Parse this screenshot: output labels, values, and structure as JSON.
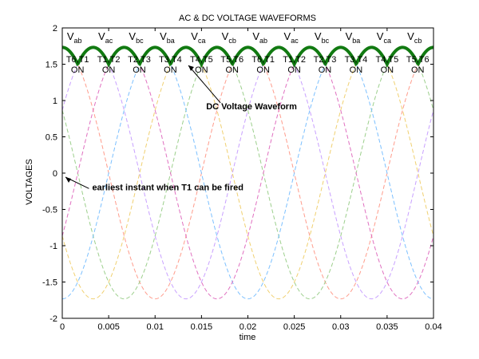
{
  "chart_data": {
    "type": "line",
    "title": "AC & DC VOLTAGE WAVEFORMS",
    "xlabel": "time",
    "ylabel": "VOLTAGES",
    "xlim": [
      0,
      0.04
    ],
    "ylim": [
      -2,
      2
    ],
    "xticks": [
      "0",
      "0.005",
      "0.01",
      "0.015",
      "0.02",
      "0.025",
      "0.03",
      "0.035",
      "0.04"
    ],
    "yticks": [
      "-2",
      "-1.5",
      "-1",
      "-0.5",
      "0",
      "0.5",
      "1",
      "1.5",
      "2"
    ],
    "grid": false,
    "frequency_hz": 50,
    "amplitude": 1.732,
    "series": [
      {
        "phase_deg": 30,
        "color": "#c8a0ff"
      },
      {
        "phase_deg": 90,
        "color": "#ff9c8c"
      },
      {
        "phase_deg": 150,
        "color": "#9ccf8c"
      },
      {
        "phase_deg": 210,
        "color": "#f0d070"
      },
      {
        "phase_deg": 270,
        "color": "#7cc0ff"
      },
      {
        "phase_deg": 330,
        "color": "#e070c0"
      }
    ],
    "dc_waveform": {
      "color": "#117a11"
    },
    "voltage_labels": [
      {
        "base": "V",
        "sub": "ab",
        "t": 0.00165
      },
      {
        "base": "V",
        "sub": "ac",
        "t": 0.005
      },
      {
        "base": "V",
        "sub": "bc",
        "t": 0.0083
      },
      {
        "base": "V",
        "sub": "ba",
        "t": 0.01165
      },
      {
        "base": "V",
        "sub": "ca",
        "t": 0.015
      },
      {
        "base": "V",
        "sub": "cb",
        "t": 0.0183
      },
      {
        "base": "V",
        "sub": "ab",
        "t": 0.02165
      },
      {
        "base": "V",
        "sub": "ac",
        "t": 0.025
      },
      {
        "base": "V",
        "sub": "bc",
        "t": 0.0283
      },
      {
        "base": "V",
        "sub": "ba",
        "t": 0.03165
      },
      {
        "base": "V",
        "sub": "ca",
        "t": 0.035
      },
      {
        "base": "V",
        "sub": "cb",
        "t": 0.0383
      }
    ],
    "thyristor_labels": [
      {
        "pair": "T6,T1",
        "state": "ON",
        "t": 0.00165
      },
      {
        "pair": "T1,T2",
        "state": "ON",
        "t": 0.005
      },
      {
        "pair": "T2,T3",
        "state": "ON",
        "t": 0.0083
      },
      {
        "pair": "T3,T4",
        "state": "ON",
        "t": 0.01165
      },
      {
        "pair": "T4,T5",
        "state": "ON",
        "t": 0.015
      },
      {
        "pair": "T5,T6",
        "state": "ON",
        "t": 0.0183
      },
      {
        "pair": "T6,T1",
        "state": "ON",
        "t": 0.02165
      },
      {
        "pair": "T1,T2",
        "state": "ON",
        "t": 0.025
      },
      {
        "pair": "T2,T3",
        "state": "ON",
        "t": 0.0283
      },
      {
        "pair": "T3,T4",
        "state": "ON",
        "t": 0.03165
      },
      {
        "pair": "T4,T5",
        "state": "ON",
        "t": 0.035
      },
      {
        "pair": "T5,T6",
        "state": "ON",
        "t": 0.0383
      }
    ],
    "annotations": [
      {
        "text": "DC Voltage Waveform",
        "x": 0.0155,
        "y": 0.88
      },
      {
        "text": "earliest instant when T1 can be fired",
        "x": 0.0015,
        "y": -0.19
      }
    ]
  }
}
